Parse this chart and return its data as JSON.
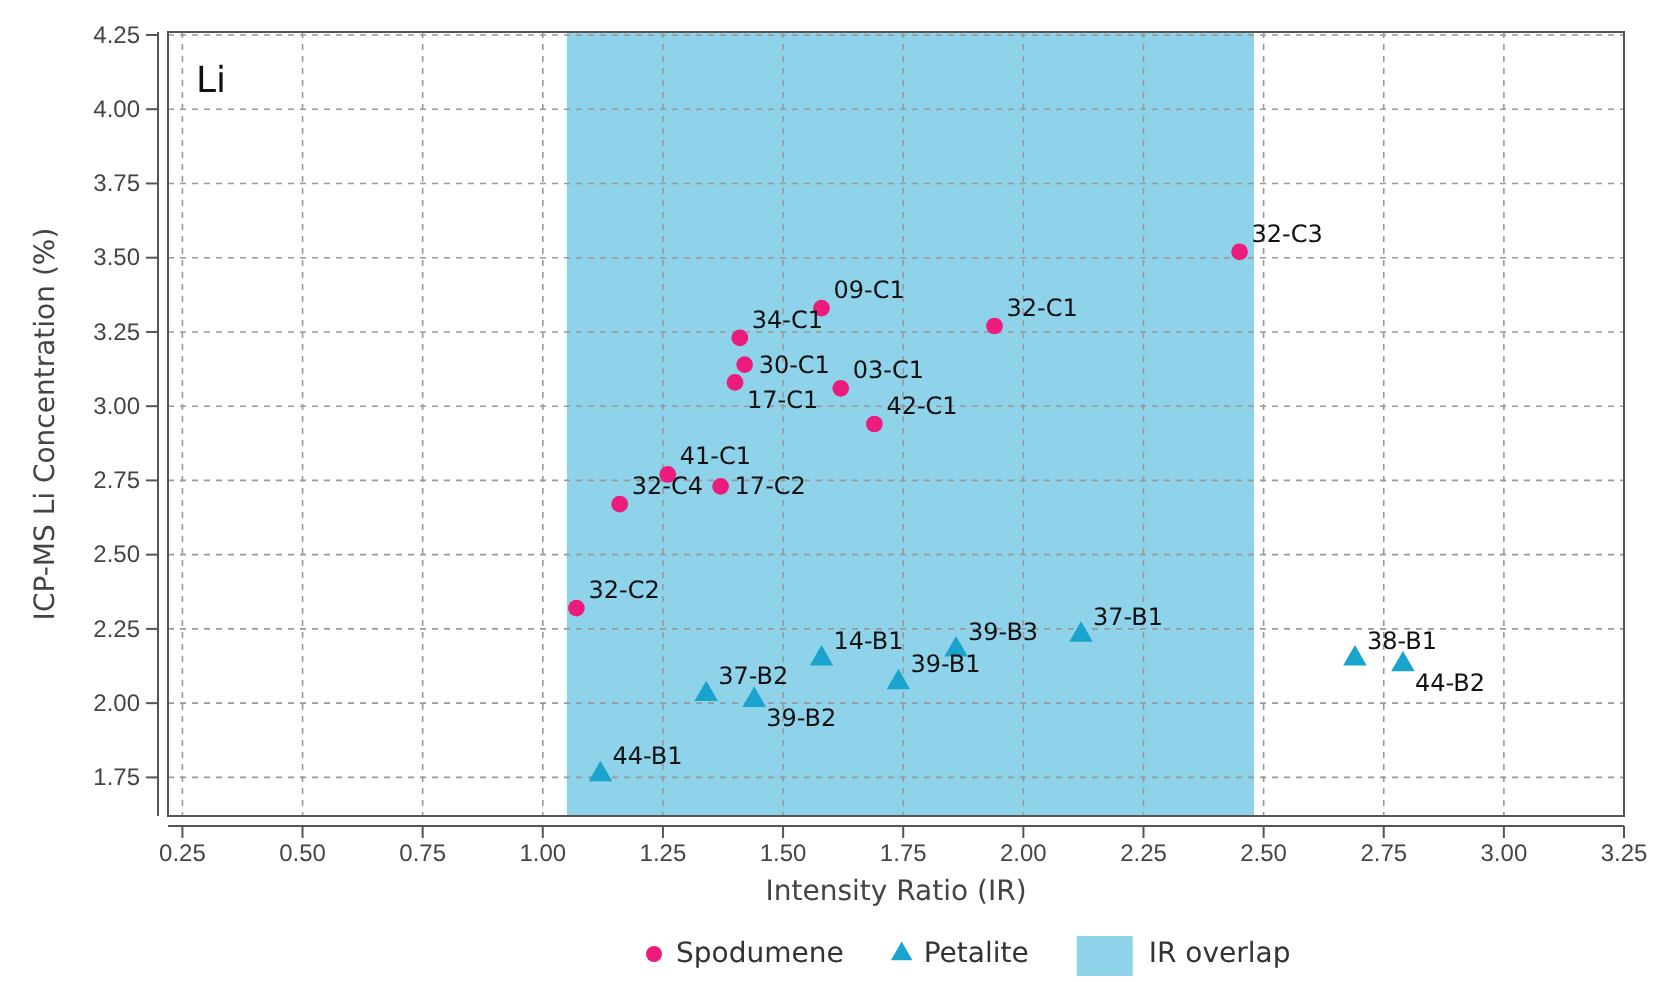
{
  "chart_data": {
    "type": "scatter",
    "xlabel": "Intensity Ratio (IR)",
    "ylabel": "ICP-MS Li Concentration (%)",
    "xlim": [
      0.22,
      3.25
    ],
    "ylim": [
      1.62,
      4.26
    ],
    "xticks": [
      {
        "value": 0.25,
        "label": "0.25"
      },
      {
        "value": 0.5,
        "label": "0.50"
      },
      {
        "value": 0.75,
        "label": "0.75"
      },
      {
        "value": 1,
        "label": "1.00"
      },
      {
        "value": 1.25,
        "label": "1.25"
      },
      {
        "value": 1.5,
        "label": "1.50"
      },
      {
        "value": 1.75,
        "label": "1.75"
      },
      {
        "value": 2,
        "label": "2.00"
      },
      {
        "value": 2.25,
        "label": "2.25"
      },
      {
        "value": 2.5,
        "label": "2.50"
      },
      {
        "value": 2.75,
        "label": "2.75"
      },
      {
        "value": 3,
        "label": "3.00"
      },
      {
        "value": 3.25,
        "label": "3.25"
      }
    ],
    "yticks": [
      1.75,
      {
        "value": 2,
        "label": "2.00"
      },
      2.25,
      {
        "value": 2.5,
        "label": "2.50"
      },
      2.75,
      {
        "value": 3,
        "label": "3.00"
      },
      3.25,
      {
        "value": 3.5,
        "label": "3.50"
      },
      3.75,
      {
        "value": 4,
        "label": "4.00"
      },
      4.25
    ],
    "grid": true,
    "legend": "bottom",
    "series": [
      {
        "name": "Spodumene",
        "color": "#ec1c7c",
        "marker": "circle",
        "x": [
          2.45,
          1.94,
          1.58,
          1.41,
          1.42,
          1.4,
          1.62,
          1.69,
          1.26,
          1.37,
          1.16,
          1.07
        ],
        "values": [
          3.52,
          3.27,
          3.33,
          3.23,
          3.14,
          3.08,
          3.06,
          2.94,
          2.77,
          2.73,
          2.67,
          2.32
        ]
      },
      {
        "name": "Petalite",
        "color": "#1aa3cc",
        "marker": "triangle",
        "x": [
          1.12,
          1.34,
          1.44,
          1.58,
          1.74,
          1.86,
          2.12,
          2.69,
          2.79
        ],
        "values": [
          1.76,
          2.03,
          2.01,
          2.15,
          2.07,
          2.18,
          2.23,
          2.15,
          2.13
        ]
      }
    ],
    "bands": [
      {
        "axis": "x",
        "from": 1.05,
        "to": 2.48,
        "label": "IR overlap",
        "color": "#8fd3ea"
      }
    ],
    "annotations": [
      "Li",
      {
        "text": "32-C3",
        "x": 2.45,
        "y": 3.52
      },
      {
        "text": "32-C1",
        "x": 1.94,
        "y": 3.27
      },
      {
        "text": "09-C1",
        "x": 1.58,
        "y": 3.33
      },
      {
        "text": "34-C1",
        "x": 1.41,
        "y": 3.23
      },
      {
        "text": "30-C1",
        "x": 1.42,
        "y": 3.14
      },
      {
        "text": "17-C1",
        "x": 1.4,
        "y": 3.08
      },
      {
        "text": "03-C1",
        "x": 1.62,
        "y": 3.06
      },
      {
        "text": "42-C1",
        "x": 1.69,
        "y": 2.94
      },
      {
        "text": "41-C1",
        "x": 1.26,
        "y": 2.77
      },
      {
        "text": "17-C2",
        "x": 1.37,
        "y": 2.73
      },
      {
        "text": "32-C4",
        "x": 1.16,
        "y": 2.67
      },
      {
        "text": "32-C2",
        "x": 1.07,
        "y": 2.32
      },
      {
        "text": "44-B1",
        "x": 1.12,
        "y": 1.76
      },
      {
        "text": "37-B2",
        "x": 1.34,
        "y": 2.03
      },
      {
        "text": "39-B2",
        "x": 1.44,
        "y": 2.01
      },
      {
        "text": "14-B1",
        "x": 1.58,
        "y": 2.15
      },
      {
        "text": "39-B1",
        "x": 1.74,
        "y": 2.07
      },
      {
        "text": "39-B3",
        "x": 1.86,
        "y": 2.18
      },
      {
        "text": "37-B1",
        "x": 2.12,
        "y": 2.23
      },
      {
        "text": "38-B1",
        "x": 2.69,
        "y": 2.15
      },
      {
        "text": "44-B2",
        "x": 2.79,
        "y": 2.13
      }
    ]
  }
}
